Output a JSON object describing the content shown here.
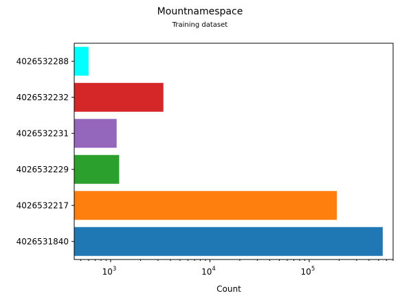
{
  "chart_data": {
    "type": "bar",
    "orientation": "horizontal",
    "title": "Mountnamespace",
    "subtitle": "Training dataset",
    "xlabel": "Count",
    "ylabel": "",
    "x_scale": "log",
    "xlim": [
      430,
      700000
    ],
    "x_ticks": [
      {
        "base": "10",
        "exp": "3",
        "value": 1000
      },
      {
        "base": "10",
        "exp": "4",
        "value": 10000
      },
      {
        "base": "10",
        "exp": "5",
        "value": 100000
      }
    ],
    "categories": [
      "4026531840",
      "4026532217",
      "4026532229",
      "4026532231",
      "4026532232",
      "4026532288"
    ],
    "values": [
      550000,
      190000,
      1220,
      1150,
      3400,
      600
    ],
    "colors": [
      "#1f77b4",
      "#ff7f0e",
      "#2ca02c",
      "#9467bd",
      "#d62728",
      "#00ffff"
    ],
    "grid": false,
    "legend": "none"
  }
}
